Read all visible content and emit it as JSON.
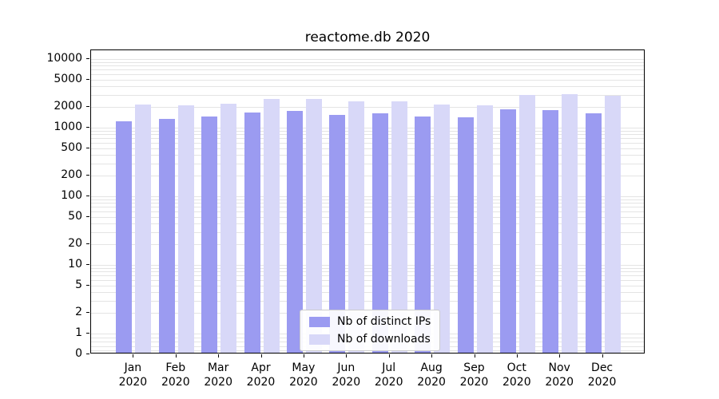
{
  "chart_data": {
    "type": "bar",
    "title": "reactome.db 2020",
    "categories": [
      "Jan 2020",
      "Feb 2020",
      "Mar 2020",
      "Apr 2020",
      "May 2020",
      "Jun 2020",
      "Jul 2020",
      "Aug 2020",
      "Sep 2020",
      "Oct 2020",
      "Nov 2020",
      "Dec 2020"
    ],
    "series": [
      {
        "name": "Nb of distinct IPs",
        "color": "#9b9bf1",
        "values": [
          1250,
          1350,
          1450,
          1650,
          1750,
          1550,
          1600,
          1450,
          1400,
          1850,
          1800,
          1600
        ]
      },
      {
        "name": "Nb of downloads",
        "color": "#d8d8f8",
        "values": [
          2150,
          2100,
          2250,
          2600,
          2600,
          2400,
          2400,
          2150,
          2100,
          3000,
          3050,
          2900
        ]
      }
    ],
    "yscale": "symlog",
    "y_ticks": [
      0,
      1,
      2,
      5,
      10,
      20,
      50,
      100,
      200,
      500,
      1000,
      2000,
      5000,
      10000
    ],
    "ylim": [
      0,
      10000
    ],
    "grid": true,
    "legend_position": "lower center"
  },
  "colors": {
    "bar_distinct_ips": "#9b9bf1",
    "bar_downloads": "#d8d8f8",
    "gridline": "#e4e4e4",
    "axis": "#000000",
    "legend_border": "#cccccc"
  }
}
